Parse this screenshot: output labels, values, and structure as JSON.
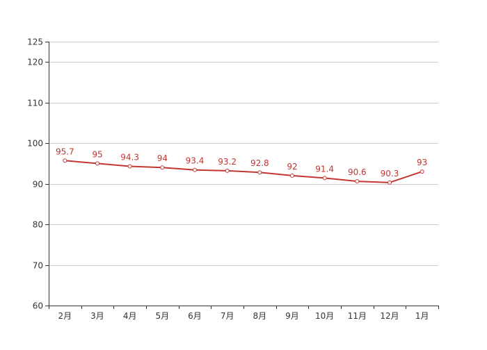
{
  "chart_data": {
    "type": "line",
    "categories": [
      "2月",
      "3月",
      "4月",
      "5月",
      "6月",
      "7月",
      "8月",
      "9月",
      "10月",
      "11月",
      "12月",
      "1月"
    ],
    "series": [
      {
        "values": [
          95.7,
          95,
          94.3,
          94,
          93.4,
          93.2,
          92.8,
          92,
          91.4,
          90.6,
          90.3,
          93
        ],
        "color": "#c23531",
        "data_labels": [
          "95.7",
          "95",
          "94.3",
          "94",
          "93.4",
          "93.2",
          "92.8",
          "92",
          "91.4",
          "90.6",
          "90.3",
          "93"
        ]
      }
    ],
    "ylim": [
      60,
      125
    ],
    "yticks": [
      60,
      70,
      80,
      90,
      100,
      110,
      120,
      125
    ],
    "ytick_labels": [
      "60",
      "70",
      "80",
      "90",
      "100",
      "110",
      "120",
      "125"
    ],
    "grid": true,
    "legend": "none",
    "title": "",
    "xlabel": "",
    "ylabel": ""
  }
}
